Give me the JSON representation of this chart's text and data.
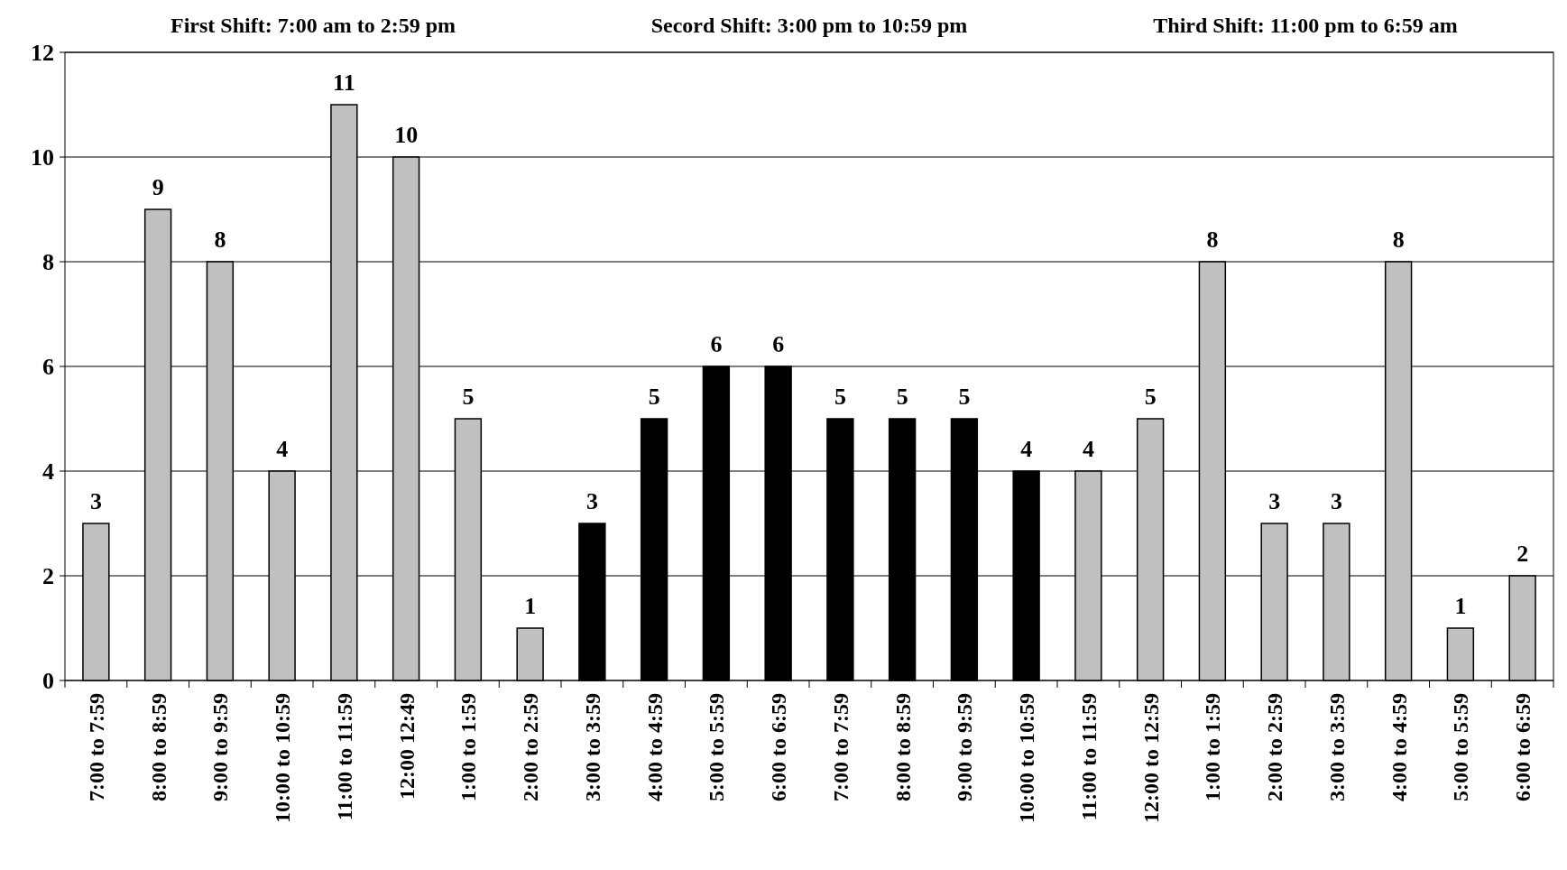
{
  "chart_data": {
    "type": "bar",
    "annotations": [
      "First Shift: 7:00 am to 2:59 pm",
      "Secord Shift: 3:00 pm to 10:59 pm",
      "Third Shift: 11:00 pm to 6:59 am"
    ],
    "categories": [
      "7:00 to 7:59",
      "8:00 to 8:59",
      "9:00 to 9:59",
      "10:00 to 10:59",
      "11:00 to 11:59",
      "12:00 12:49",
      "1:00 to 1:59",
      "2:00 to 2:59",
      "3:00 to 3:59",
      "4:00 to 4:59",
      "5:00 to 5:59",
      "6:00 to 6:59",
      "7:00 to 7:59",
      "8:00 to 8:59",
      "9:00 to 9:59",
      "10:00 to 10:59",
      "11:00 to 11:59",
      "12:00 to 12:59",
      "1:00 to 1:59",
      "2:00 to 2:59",
      "3:00 to 3:59",
      "4:00 to 4:59",
      "5:00 to 5:59",
      "6:00 to 6:59"
    ],
    "values": [
      3,
      9,
      8,
      4,
      11,
      10,
      5,
      1,
      3,
      5,
      6,
      6,
      5,
      5,
      5,
      4,
      4,
      5,
      8,
      3,
      3,
      8,
      1,
      2
    ],
    "colors": [
      "#c0c0c0",
      "#c0c0c0",
      "#c0c0c0",
      "#c0c0c0",
      "#c0c0c0",
      "#c0c0c0",
      "#c0c0c0",
      "#c0c0c0",
      "#000000",
      "#000000",
      "#000000",
      "#000000",
      "#000000",
      "#000000",
      "#000000",
      "#000000",
      "#c0c0c0",
      "#c0c0c0",
      "#c0c0c0",
      "#c0c0c0",
      "#c0c0c0",
      "#c0c0c0",
      "#c0c0c0",
      "#c0c0c0"
    ],
    "ylim": [
      0,
      12
    ],
    "yticks": [
      0,
      2,
      4,
      6,
      8,
      10,
      12
    ],
    "grid": "y",
    "data_labels": true
  }
}
